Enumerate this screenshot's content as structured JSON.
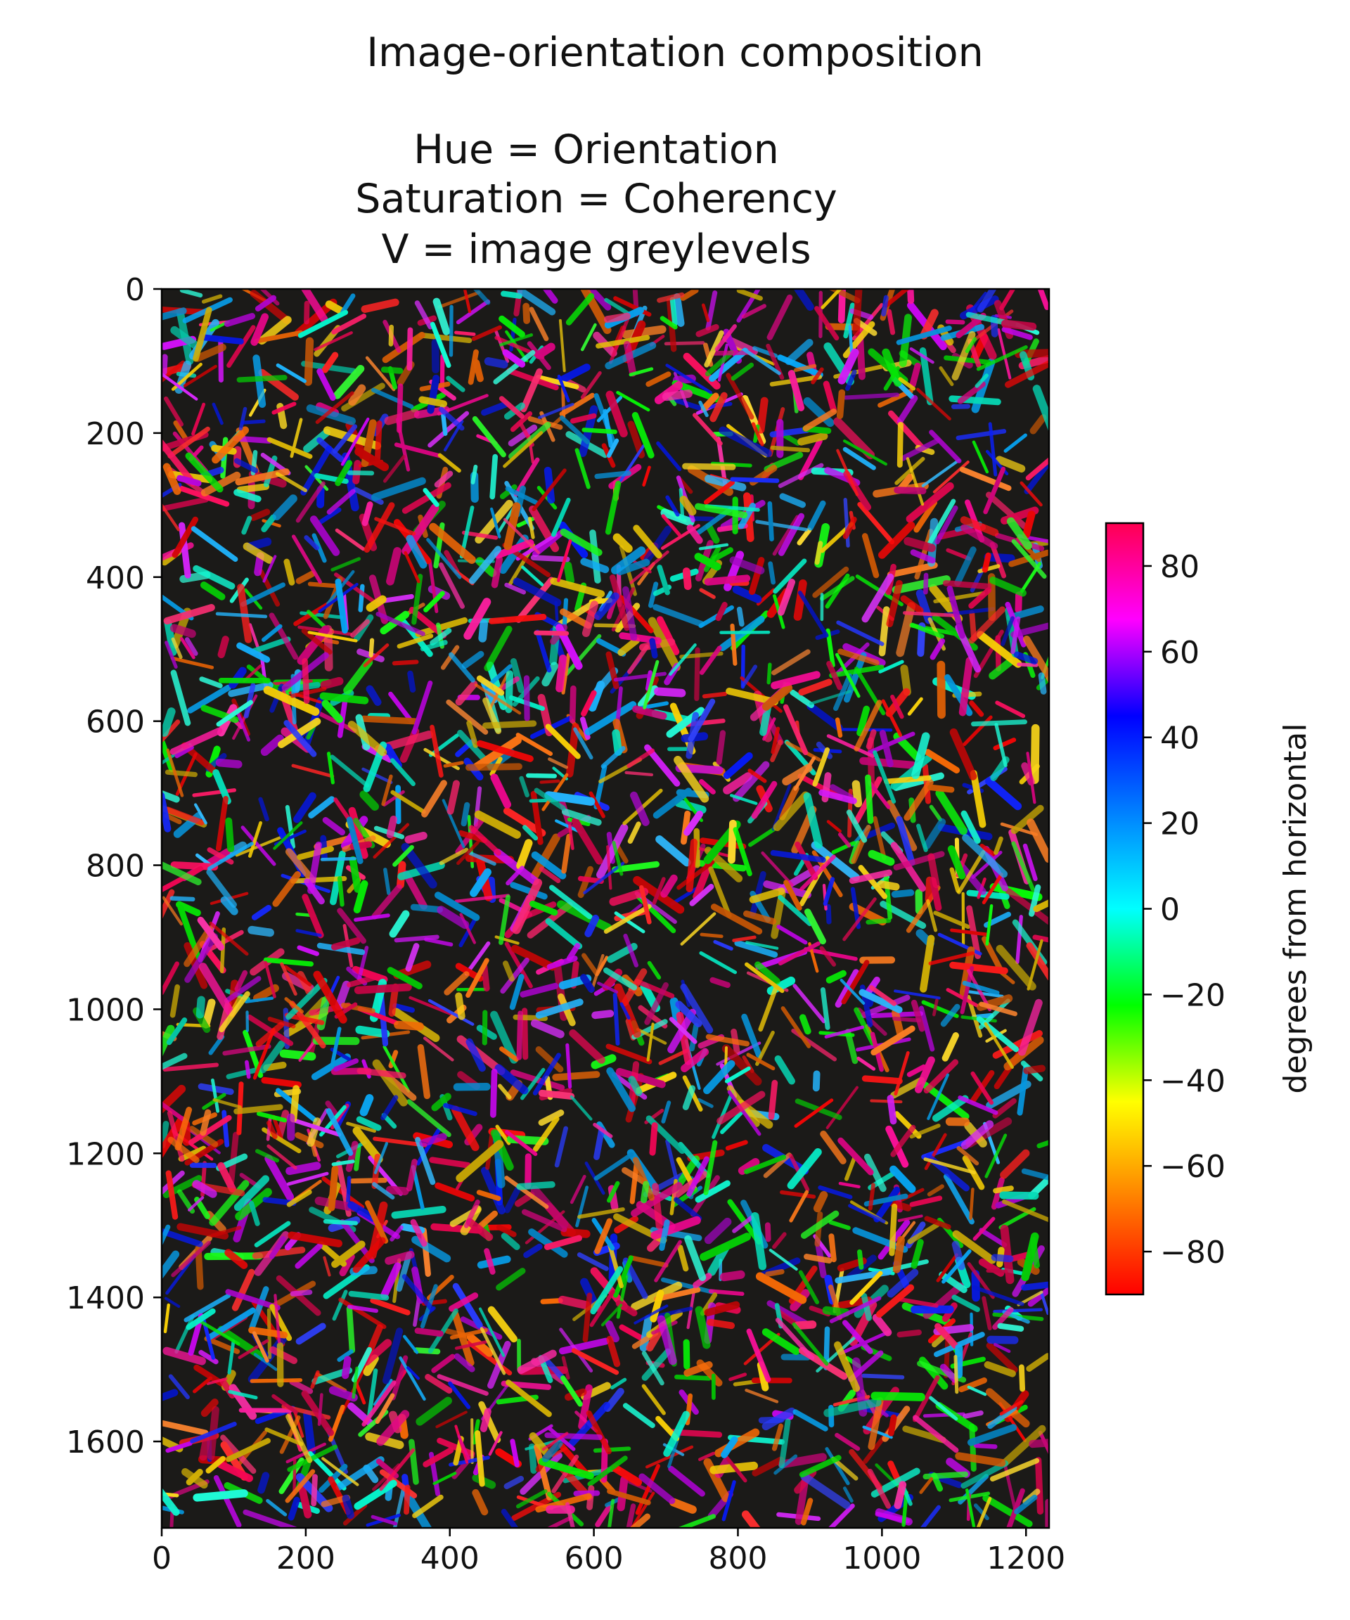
{
  "chart_data": {
    "type": "heatmap",
    "title": "Image-orientation composition",
    "subtitle_lines": [
      "Hue = Orientation",
      "Saturation = Coherency",
      "V = image greylevels"
    ],
    "xlabel": "",
    "ylabel": "",
    "xlim": [
      0,
      1232
    ],
    "ylim": [
      1720,
      0
    ],
    "y_inverted": true,
    "x_ticks": [
      0,
      200,
      400,
      600,
      800,
      1000,
      1200
    ],
    "y_ticks": [
      0,
      200,
      400,
      600,
      800,
      1000,
      1200,
      1400,
      1600
    ],
    "grid": false,
    "colorbar": {
      "label": "degrees from horizontal",
      "range": [
        -90,
        90
      ],
      "ticks": [
        80,
        60,
        40,
        20,
        0,
        -20,
        -40,
        -60,
        -80
      ],
      "tick_labels": [
        "80",
        "60",
        "40",
        "20",
        "0",
        "−20",
        "−40",
        "−60",
        "−80"
      ],
      "colormap": "hsv",
      "colors": [
        "#ff0000",
        "#ff8000",
        "#ffff00",
        "#00ff00",
        "#00ffff",
        "#0080ff",
        "#0000ff",
        "#ff00ff",
        "#ff0050"
      ]
    }
  }
}
